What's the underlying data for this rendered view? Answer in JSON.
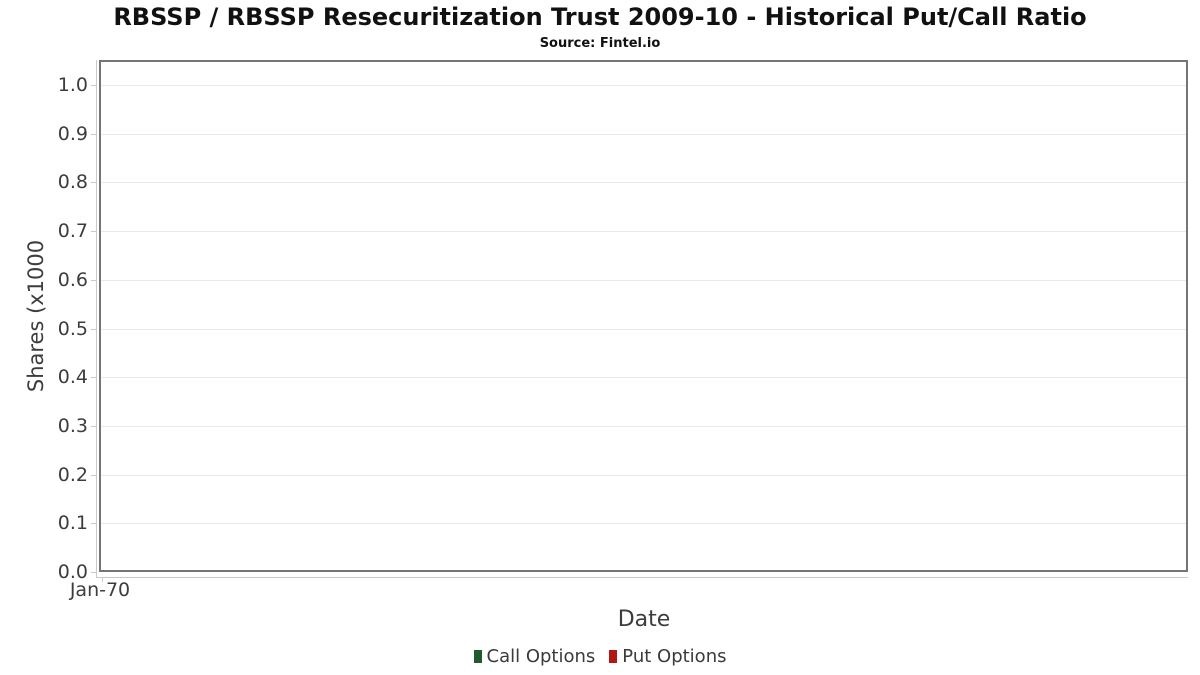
{
  "header": {
    "title": "RBSSP / RBSSP Resecuritization Trust 2009-10 - Historical Put/Call Ratio",
    "source": "Source: Fintel.io"
  },
  "chart_data": {
    "type": "bar",
    "title": "RBSSP / RBSSP Resecuritization Trust 2009-10 - Historical Put/Call Ratio",
    "subtitle": "Source: Fintel.io",
    "xlabel": "Date",
    "ylabel": "Shares (x1000",
    "xticks": [
      "Jan-70"
    ],
    "yticks": [
      0.0,
      0.1,
      0.2,
      0.3,
      0.4,
      0.5,
      0.6,
      0.7,
      0.8,
      0.9,
      1.0
    ],
    "ylim": [
      0.0,
      1.05
    ],
    "grid": "horizontal",
    "legend_position": "bottom-center",
    "series": [
      {
        "name": "Call Options",
        "color": "#1e5b32",
        "x": [],
        "values": []
      },
      {
        "name": "Put Options",
        "color": "#b11717",
        "x": [],
        "values": []
      }
    ]
  },
  "colors": {
    "plot_border": "#757575",
    "axis_line": "#c9c9c9",
    "gridline": "#e9e9e9",
    "text": "#3d3d3d",
    "call_green": "#1e5b32",
    "put_red": "#b11717"
  }
}
